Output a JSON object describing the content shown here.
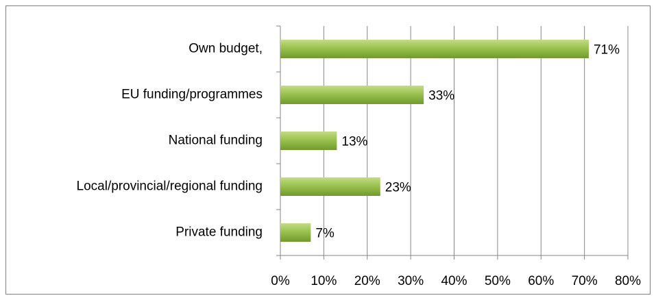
{
  "chart_data": {
    "type": "hbar",
    "categories": [
      "Own budget,",
      "EU funding/programmes",
      "National funding",
      "Local/provincial/regional funding",
      "Private funding"
    ],
    "values": [
      71,
      33,
      13,
      23,
      7
    ],
    "value_labels": [
      "71%",
      "33%",
      "13%",
      "23%",
      "7%"
    ],
    "color": "#8cb443",
    "xlim": [
      0,
      80
    ],
    "xticks": [
      {
        "value": 0,
        "label": "0%"
      },
      {
        "value": 10,
        "label": "10%"
      },
      {
        "value": 20,
        "label": "20%"
      },
      {
        "value": 30,
        "label": "30%"
      },
      {
        "value": 40,
        "label": "40%"
      },
      {
        "value": 50,
        "label": "50%"
      },
      {
        "value": 60,
        "label": "60%"
      },
      {
        "value": 70,
        "label": "70%"
      },
      {
        "value": 80,
        "label": "80%"
      }
    ],
    "grid": true
  }
}
